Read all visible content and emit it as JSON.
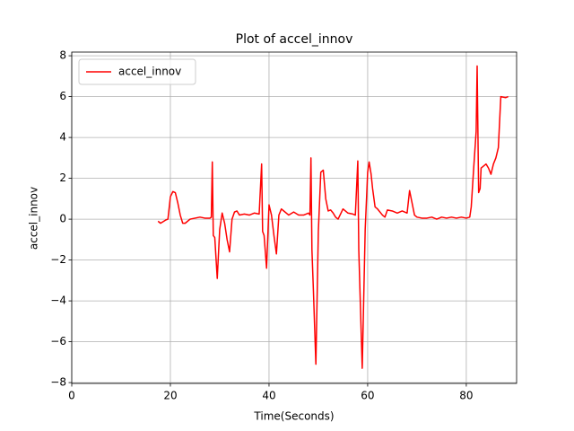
{
  "chart_data": {
    "type": "line",
    "title": "Plot of accel_innov",
    "xlabel": "Time(Seconds)",
    "ylabel": "accel_innov",
    "x": [
      17.5,
      18,
      19,
      19.5,
      20,
      20.5,
      21,
      21.5,
      22,
      22.5,
      23,
      24,
      25,
      26,
      27,
      28,
      28.3,
      28.5,
      28.7,
      29,
      29.5,
      30,
      30.5,
      31,
      31.5,
      32,
      32.5,
      33,
      33.5,
      34,
      35,
      36,
      37,
      38,
      38.5,
      38.7,
      39,
      39.5,
      40,
      40.5,
      41,
      41.5,
      42,
      42.5,
      43,
      44,
      45,
      46,
      47,
      48,
      48.3,
      48.5,
      48.7,
      49,
      49.5,
      50,
      50.5,
      51,
      51.5,
      52,
      52.5,
      53,
      53.5,
      54,
      55,
      56,
      57,
      57.5,
      58,
      58.2,
      58.5,
      58.9,
      59.5,
      60,
      60.3,
      60.7,
      61,
      61.5,
      62,
      63,
      63.5,
      64,
      65,
      66,
      67,
      68,
      68.5,
      69,
      69.5,
      70,
      71,
      72,
      73,
      74,
      75,
      76,
      77,
      78,
      79,
      80,
      80.7,
      81,
      81.5,
      82,
      82.2,
      82.5,
      82.8,
      83,
      84,
      84.5,
      85,
      85.5,
      86,
      86.5,
      87,
      88,
      88.5
    ],
    "series": [
      {
        "name": "accel_innov",
        "color": "#ff0000",
        "values": [
          -0.1,
          -0.2,
          -0.05,
          0.0,
          1.1,
          1.35,
          1.3,
          0.8,
          0.2,
          -0.2,
          -0.2,
          0.0,
          0.05,
          0.1,
          0.05,
          0.05,
          0.1,
          2.8,
          -0.8,
          -0.9,
          -2.9,
          -0.5,
          0.3,
          -0.2,
          -1.0,
          -1.6,
          0.0,
          0.35,
          0.4,
          0.2,
          0.25,
          0.2,
          0.3,
          0.25,
          2.7,
          -0.6,
          -0.8,
          -2.4,
          0.7,
          0.2,
          -0.8,
          -1.7,
          0.2,
          0.5,
          0.4,
          0.2,
          0.35,
          0.2,
          0.2,
          0.3,
          0.2,
          3.0,
          -1.5,
          -3.5,
          -7.1,
          -0.6,
          2.3,
          2.4,
          1.0,
          0.4,
          0.45,
          0.3,
          0.1,
          0.0,
          0.5,
          0.3,
          0.25,
          0.2,
          2.85,
          -1.5,
          -4.0,
          -7.3,
          -0.5,
          2.3,
          2.8,
          2.2,
          1.5,
          0.6,
          0.5,
          0.2,
          0.1,
          0.45,
          0.4,
          0.3,
          0.4,
          0.3,
          1.4,
          0.8,
          0.2,
          0.1,
          0.05,
          0.05,
          0.1,
          0.0,
          0.1,
          0.05,
          0.1,
          0.05,
          0.1,
          0.05,
          0.1,
          0.6,
          2.5,
          4.3,
          7.5,
          1.3,
          1.5,
          2.5,
          2.7,
          2.5,
          2.2,
          2.7,
          3.0,
          3.5,
          6.0,
          5.95,
          6.0
        ]
      }
    ],
    "xlim": [
      0,
      90.2
    ],
    "ylim": [
      -8.04,
      8.18
    ],
    "xticks": [
      0,
      20,
      40,
      60,
      80
    ],
    "yticks": [
      {
        "value": -8,
        "label": "−8"
      },
      {
        "value": -6,
        "label": "−6"
      },
      {
        "value": -4,
        "label": "−4"
      },
      {
        "value": -2,
        "label": "−2"
      },
      0,
      2,
      4,
      6,
      8
    ],
    "grid": true,
    "legend": "upper left"
  }
}
